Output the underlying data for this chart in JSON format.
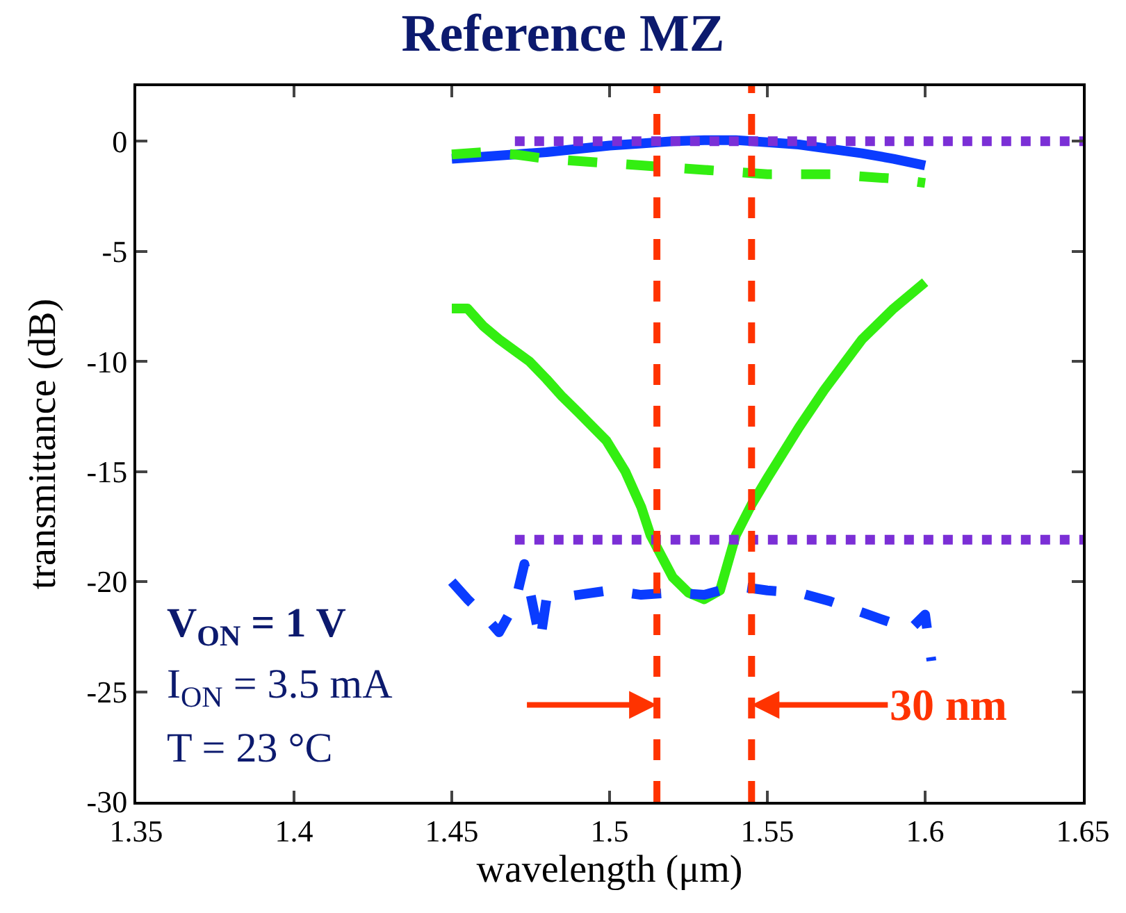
{
  "chart_data": {
    "type": "line",
    "title": "Reference MZ",
    "xlabel": "wavelength (μm)",
    "ylabel": "transmittance (dB)",
    "xlim": [
      1.35,
      1.65
    ],
    "xticks": [
      1.35,
      1.4,
      1.45,
      1.5,
      1.55,
      1.6,
      1.65
    ],
    "ylim": [
      -30,
      2.5
    ],
    "yticks": [
      -30,
      -25,
      -20,
      -15,
      -10,
      -5,
      0
    ],
    "series": [
      {
        "color": "#0a3cff",
        "line_style": "solid",
        "x": [
          1.45,
          1.46,
          1.47,
          1.48,
          1.49,
          1.5,
          1.51,
          1.52,
          1.53,
          1.54,
          1.55,
          1.56,
          1.57,
          1.58,
          1.59,
          1.6
        ],
        "values": [
          -0.8,
          -0.7,
          -0.6,
          -0.5,
          -0.35,
          -0.2,
          -0.1,
          0.0,
          0.05,
          0.05,
          -0.05,
          -0.15,
          -0.35,
          -0.55,
          -0.8,
          -1.1
        ]
      },
      {
        "color": "#33ee11",
        "line_style": "dashed",
        "x": [
          1.45,
          1.46,
          1.47,
          1.48,
          1.49,
          1.5,
          1.51,
          1.52,
          1.53,
          1.54,
          1.55,
          1.56,
          1.57,
          1.58,
          1.59,
          1.6
        ],
        "values": [
          -0.6,
          -0.5,
          -0.6,
          -0.8,
          -0.9,
          -1.0,
          -1.1,
          -1.2,
          -1.3,
          -1.4,
          -1.5,
          -1.5,
          -1.5,
          -1.6,
          -1.7,
          -1.9
        ]
      },
      {
        "color": "#33ee11",
        "line_style": "solid",
        "x": [
          1.45,
          1.455,
          1.46,
          1.465,
          1.4746,
          1.48,
          1.485,
          1.49,
          1.499,
          1.505,
          1.51,
          1.513,
          1.52,
          1.525,
          1.53,
          1.535,
          1.54,
          1.545,
          1.55,
          1.56,
          1.568,
          1.58,
          1.59,
          1.6
        ],
        "values": [
          -7.6,
          -7.6,
          -8.4,
          -9.0,
          -10.0,
          -10.8,
          -11.6,
          -12.3,
          -13.6,
          -15.0,
          -16.6,
          -17.9,
          -19.8,
          -20.5,
          -20.8,
          -20.4,
          -17.9,
          -16.5,
          -15.3,
          -13.0,
          -11.3,
          -9.0,
          -7.6,
          -6.4
        ]
      },
      {
        "color": "#0a3cff",
        "line_style": "dashed",
        "x": [
          1.45,
          1.455,
          1.46,
          1.465,
          1.47,
          1.473,
          1.478,
          1.48,
          1.49,
          1.5,
          1.51,
          1.52,
          1.53,
          1.54,
          1.55,
          1.56,
          1.57,
          1.58,
          1.59,
          1.595,
          1.6,
          1.602
        ],
        "values": [
          -20.0,
          -20.8,
          -21.5,
          -22.3,
          -21.0,
          -19.2,
          -22.7,
          -20.8,
          -20.6,
          -20.4,
          -20.6,
          -20.5,
          -20.6,
          -20.2,
          -20.4,
          -20.5,
          -20.9,
          -21.4,
          -21.9,
          -22.2,
          -21.5,
          -23.6
        ]
      },
      {
        "color": "#7b2fd6",
        "line_style": "dotted",
        "x": [
          1.47,
          1.65
        ],
        "values": [
          0,
          0
        ]
      },
      {
        "color": "#7b2fd6",
        "line_style": "dotted",
        "x": [
          1.47,
          1.65
        ],
        "values": [
          -18.1,
          -18.1
        ]
      }
    ],
    "ref_lines": [
      {
        "axis": "x",
        "value": 1.515,
        "color": "#ff3300",
        "line_style": "dashed"
      },
      {
        "axis": "x",
        "value": 1.545,
        "color": "#ff3300",
        "line_style": "dashed"
      }
    ],
    "annotations": [
      "V$_{ON}$ = 1 V",
      "I$_{ON}$ = 3.5 mA",
      "T = 23 °C",
      {
        "text": "30 nm",
        "x": 1.545,
        "y": -25.6
      }
    ]
  }
}
